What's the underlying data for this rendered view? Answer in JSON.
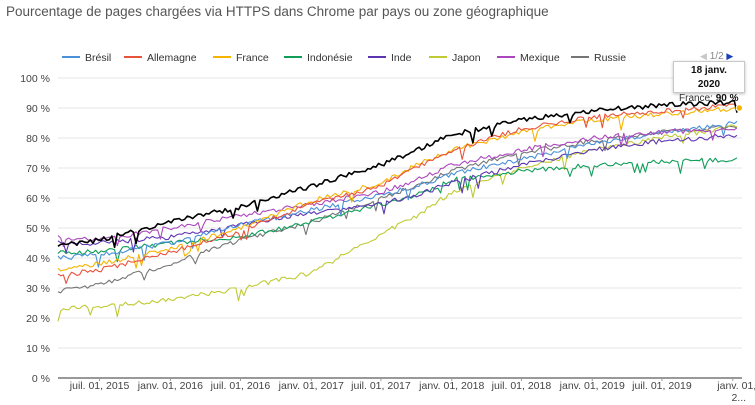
{
  "title": "Pourcentage de pages chargées via HTTPS dans Chrome par pays ou zone géographique",
  "pager": {
    "label": "1/2",
    "prev_icon": "triangle-left-icon",
    "next_icon": "triangle-right-icon"
  },
  "tooltip": {
    "date": "18 janv. 2020",
    "series": "France:",
    "value": "90 %"
  },
  "chart_data": {
    "type": "line",
    "title": "Pourcentage de pages chargées via HTTPS dans Chrome par pays ou zone géographique",
    "xlabel": "",
    "ylabel": "",
    "ylim": [
      0,
      100
    ],
    "yticks": [
      0,
      10,
      20,
      30,
      40,
      50,
      60,
      70,
      80,
      90,
      100
    ],
    "ytick_labels": [
      "0 %",
      "10 %",
      "20 %",
      "30 %",
      "40 %",
      "50 %",
      "60 %",
      "70 %",
      "80 %",
      "90 %",
      "100 %"
    ],
    "xlim": [
      "2015-03-15",
      "2020-01-25"
    ],
    "xticks": [
      {
        "date": "2015-07-01",
        "label": "juil. 01, 2015"
      },
      {
        "date": "2016-01-01",
        "label": "janv. 01, 2016"
      },
      {
        "date": "2016-07-01",
        "label": "juil. 01, 2016"
      },
      {
        "date": "2017-01-01",
        "label": "janv. 01, 2017"
      },
      {
        "date": "2017-07-01",
        "label": "juil. 01, 2017"
      },
      {
        "date": "2018-01-01",
        "label": "janv. 01, 2018"
      },
      {
        "date": "2018-07-01",
        "label": "juil. 01, 2018"
      },
      {
        "date": "2019-01-01",
        "label": "janv. 01, 2019"
      },
      {
        "date": "2019-07-01",
        "label": "juil. 01, 2019"
      },
      {
        "date": "2020-01-01",
        "label": "janv. 01, 2..."
      }
    ],
    "grid": true,
    "legend": "top",
    "x": [
      "2015-03-15",
      "2015-07-01",
      "2016-01-01",
      "2016-07-01",
      "2017-01-01",
      "2017-07-01",
      "2017-10-01",
      "2018-01-01",
      "2018-07-01",
      "2019-01-01",
      "2019-07-01",
      "2020-01-18"
    ],
    "series": [
      {
        "name": "Brésil",
        "color": "#4a90d9",
        "values": [
          40,
          41,
          45,
          51,
          56,
          61,
          64,
          68,
          73,
          78,
          82,
          85
        ]
      },
      {
        "name": "Allemagne",
        "color": "#e8533c",
        "values": [
          34,
          36,
          42,
          49,
          58,
          64,
          70,
          76,
          83,
          87,
          89,
          91
        ]
      },
      {
        "name": "France",
        "color": "#f4b400",
        "values": [
          36,
          38,
          43,
          50,
          59,
          65,
          71,
          76,
          82,
          86,
          88,
          90
        ]
      },
      {
        "name": "Indonésie",
        "color": "#0f9d58",
        "values": [
          42,
          42,
          45,
          47,
          52,
          58,
          61,
          66,
          69,
          71,
          72,
          73
        ]
      },
      {
        "name": "Inde",
        "color": "#5e35b1",
        "values": [
          45,
          45,
          47,
          51,
          55,
          58,
          61,
          65,
          71,
          76,
          79,
          81
        ]
      },
      {
        "name": "Japon",
        "color": "#c0ca33",
        "values": [
          23,
          24,
          26,
          30,
          35,
          48,
          54,
          62,
          70,
          76,
          80,
          84
        ]
      },
      {
        "name": "Mexique",
        "color": "#ab47bc",
        "values": [
          47,
          46,
          50,
          54,
          58,
          62,
          66,
          71,
          76,
          80,
          82,
          83
        ]
      },
      {
        "name": "Russie",
        "color": "#757575",
        "values": [
          29,
          31,
          38,
          46,
          52,
          60,
          64,
          69,
          75,
          79,
          82,
          84
        ]
      },
      {
        "name": "",
        "color": "#000000",
        "values": [
          44,
          46,
          52,
          57,
          64,
          71,
          76,
          81,
          86,
          89,
          91,
          92
        ]
      }
    ]
  }
}
